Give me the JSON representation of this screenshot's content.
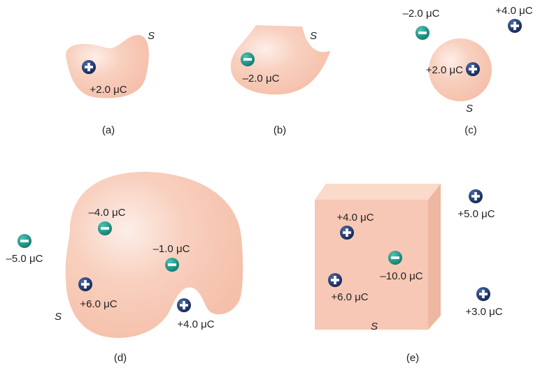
{
  "colors": {
    "surface": "#f7c8b5",
    "positive": "#1e3567",
    "negative": "#17978a"
  },
  "surface_label": "S",
  "panels": {
    "a": {
      "caption": "(a)",
      "charges": [
        {
          "sign": "+",
          "label": "+2.0 μC"
        }
      ]
    },
    "b": {
      "caption": "(b)",
      "charges": [
        {
          "sign": "-",
          "label": "–2.0 μC"
        }
      ]
    },
    "c": {
      "caption": "(c)",
      "charges": [
        {
          "sign": "-",
          "label": "–2.0 μC"
        },
        {
          "sign": "+",
          "label": "+4.0 μC"
        },
        {
          "sign": "+",
          "label": "+2.0 μC"
        }
      ]
    },
    "d": {
      "caption": "(d)",
      "charges": [
        {
          "sign": "-",
          "label": "–4.0 μC"
        },
        {
          "sign": "-",
          "label": "–1.0 μC"
        },
        {
          "sign": "+",
          "label": "+6.0 μC"
        },
        {
          "sign": "+",
          "label": "+4.0 μC"
        },
        {
          "sign": "-",
          "label": "–5.0 μC"
        }
      ]
    },
    "e": {
      "caption": "(e)",
      "charges": [
        {
          "sign": "+",
          "label": "+4.0 μC"
        },
        {
          "sign": "-",
          "label": "–10.0 μC"
        },
        {
          "sign": "+",
          "label": "+6.0 μC"
        },
        {
          "sign": "+",
          "label": "+5.0 μC"
        },
        {
          "sign": "+",
          "label": "+3.0 μC"
        }
      ]
    }
  }
}
